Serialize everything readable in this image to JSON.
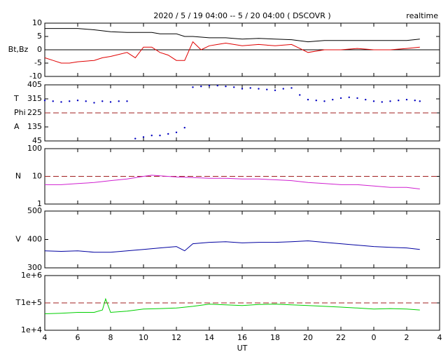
{
  "chart_data": [
    {
      "type": "line",
      "title": "2020 / 5 / 19  04:00 -- 5 / 20  04:00 ( DSCOVR )",
      "annotation": "realtime",
      "ylabel": [
        "Bt,Bz"
      ],
      "xlim": [
        4,
        28
      ],
      "xticks": [
        4,
        6,
        8,
        10,
        12,
        14,
        16,
        18,
        20,
        22,
        24,
        26,
        28
      ],
      "ylim": [
        -10,
        10
      ],
      "yticks": [
        -10,
        -5,
        0,
        5,
        10
      ],
      "log": false,
      "reference_line": {
        "value": 0,
        "color": "#000000",
        "dashed": false
      },
      "series": [
        {
          "name": "Bt",
          "color": "#000000",
          "x": [
            4,
            5,
            6,
            7,
            8,
            9,
            10,
            10.5,
            11,
            12,
            12.5,
            13,
            14,
            15,
            16,
            17,
            18,
            19,
            20,
            21,
            22,
            23,
            24,
            25,
            26,
            26.8
          ],
          "values": [
            8,
            8,
            8,
            7.5,
            6.8,
            6.5,
            6.5,
            6.5,
            6,
            6,
            5,
            5,
            4.5,
            4.5,
            4,
            4.3,
            4,
            3.8,
            3,
            3.5,
            3.5,
            3.5,
            3.5,
            3.5,
            3.5,
            4
          ]
        },
        {
          "name": "Bz",
          "color": "#e00000",
          "x": [
            4,
            4.5,
            5,
            5.5,
            6,
            7,
            7.5,
            8,
            9,
            9.5,
            10,
            10.5,
            11,
            11.5,
            12,
            12.5,
            13,
            13.5,
            14,
            14.5,
            15,
            16,
            17,
            18,
            19,
            19.5,
            20,
            21,
            22,
            23,
            24,
            25,
            26,
            26.8
          ],
          "values": [
            -3,
            -4,
            -5,
            -5,
            -4.5,
            -4,
            -3,
            -2.5,
            -1,
            -3,
            1,
            1,
            -1,
            -2,
            -4,
            -4,
            3,
            0,
            1.5,
            2,
            2.5,
            1.5,
            2,
            1.5,
            2,
            0.5,
            -1,
            0,
            0,
            0.5,
            0,
            0,
            0.5,
            1
          ]
        }
      ]
    },
    {
      "type": "scatter",
      "ylabel": [
        "T",
        "Phi",
        "A"
      ],
      "xlim": [
        4,
        28
      ],
      "xticks": [
        4,
        6,
        8,
        10,
        12,
        14,
        16,
        18,
        20,
        22,
        24,
        26,
        28
      ],
      "ylim": [
        45,
        405
      ],
      "yticks": [
        45,
        135,
        225,
        315,
        405
      ],
      "log": false,
      "reference_line": {
        "value": 225,
        "color": "#a02020",
        "dashed": true
      },
      "series": [
        {
          "name": "Phi",
          "color": "#0000c0",
          "x": [
            4,
            4.5,
            5,
            5.5,
            6,
            6.5,
            7,
            7.5,
            8,
            8.5,
            9,
            9.5,
            10,
            10.5,
            11,
            11.5,
            12,
            12.5,
            13,
            13.5,
            14,
            14.5,
            15,
            15.5,
            16,
            16.5,
            17,
            17.5,
            18,
            18.5,
            19,
            19.5,
            20,
            20.5,
            21,
            21.5,
            22,
            22.5,
            23,
            23.5,
            24,
            24.5,
            25,
            25.5,
            26,
            26.5,
            26.8
          ],
          "values": [
            305,
            300,
            295,
            300,
            305,
            300,
            290,
            300,
            295,
            300,
            300,
            60,
            70,
            80,
            80,
            90,
            100,
            130,
            390,
            395,
            400,
            400,
            395,
            390,
            380,
            385,
            380,
            375,
            370,
            380,
            385,
            340,
            310,
            305,
            300,
            310,
            320,
            325,
            320,
            310,
            300,
            295,
            300,
            305,
            310,
            305,
            300
          ]
        }
      ]
    },
    {
      "type": "line",
      "ylabel": [
        "N"
      ],
      "xlim": [
        4,
        28
      ],
      "xticks": [
        4,
        6,
        8,
        10,
        12,
        14,
        16,
        18,
        20,
        22,
        24,
        26,
        28
      ],
      "ylim": [
        1,
        100
      ],
      "yticks": [
        1,
        10,
        100
      ],
      "log": true,
      "reference_line": {
        "value": 10,
        "color": "#a02020",
        "dashed": true
      },
      "series": [
        {
          "name": "N",
          "color": "#d020d0",
          "x": [
            4,
            5,
            6,
            7,
            8,
            9,
            10,
            10.5,
            11,
            12,
            13,
            14,
            15,
            16,
            17,
            18,
            19,
            20,
            21,
            22,
            23,
            24,
            25,
            26,
            26.8
          ],
          "values": [
            5,
            5,
            5.5,
            6,
            7,
            8,
            10,
            11,
            10.5,
            9.5,
            9,
            8.5,
            8.5,
            8,
            8,
            7.5,
            7,
            6,
            5.5,
            5,
            5,
            4.5,
            4,
            4,
            3.5
          ]
        }
      ]
    },
    {
      "type": "line",
      "ylabel": [
        "V"
      ],
      "xlim": [
        4,
        28
      ],
      "xticks": [
        4,
        6,
        8,
        10,
        12,
        14,
        16,
        18,
        20,
        22,
        24,
        26,
        28
      ],
      "ylim": [
        300,
        500
      ],
      "yticks": [
        300,
        400,
        500
      ],
      "log": false,
      "series": [
        {
          "name": "V",
          "color": "#0000a0",
          "x": [
            4,
            5,
            6,
            7,
            8,
            9,
            10,
            11,
            12,
            12.5,
            13,
            14,
            15,
            16,
            17,
            18,
            19,
            20,
            21,
            22,
            23,
            24,
            25,
            26,
            26.8
          ],
          "values": [
            360,
            358,
            360,
            355,
            355,
            360,
            365,
            370,
            375,
            360,
            385,
            390,
            392,
            388,
            390,
            390,
            392,
            395,
            390,
            385,
            380,
            375,
            372,
            370,
            365
          ]
        }
      ]
    },
    {
      "type": "line",
      "ylabel": [
        "T"
      ],
      "xlabel": "UT",
      "xlim": [
        4,
        28
      ],
      "xticks": [
        4,
        6,
        8,
        10,
        12,
        14,
        16,
        18,
        20,
        22,
        {
          "value": 24,
          "label": "0"
        },
        {
          "value": 26,
          "label": "2"
        },
        {
          "value": 28,
          "label": "4"
        }
      ],
      "ylim": [
        10000,
        1000000
      ],
      "yticks": [
        {
          "value": 10000,
          "label": "1e+4"
        },
        {
          "value": 100000,
          "label": "1e+5"
        },
        {
          "value": 1000000,
          "label": "1e+6"
        }
      ],
      "log": true,
      "reference_line": {
        "value": 100000,
        "color": "#a02020",
        "dashed": true
      },
      "series": [
        {
          "name": "T",
          "color": "#00d000",
          "x": [
            4,
            5,
            6,
            7,
            7.5,
            7.7,
            8,
            9,
            10,
            11,
            12,
            13,
            14,
            15,
            16,
            17,
            18,
            19,
            20,
            21,
            22,
            23,
            24,
            25,
            26,
            26.8
          ],
          "values": [
            40000,
            42000,
            45000,
            45000,
            55000,
            140000,
            45000,
            50000,
            60000,
            62000,
            65000,
            75000,
            90000,
            85000,
            80000,
            88000,
            90000,
            85000,
            80000,
            75000,
            70000,
            65000,
            60000,
            62000,
            60000,
            55000
          ]
        }
      ]
    }
  ]
}
